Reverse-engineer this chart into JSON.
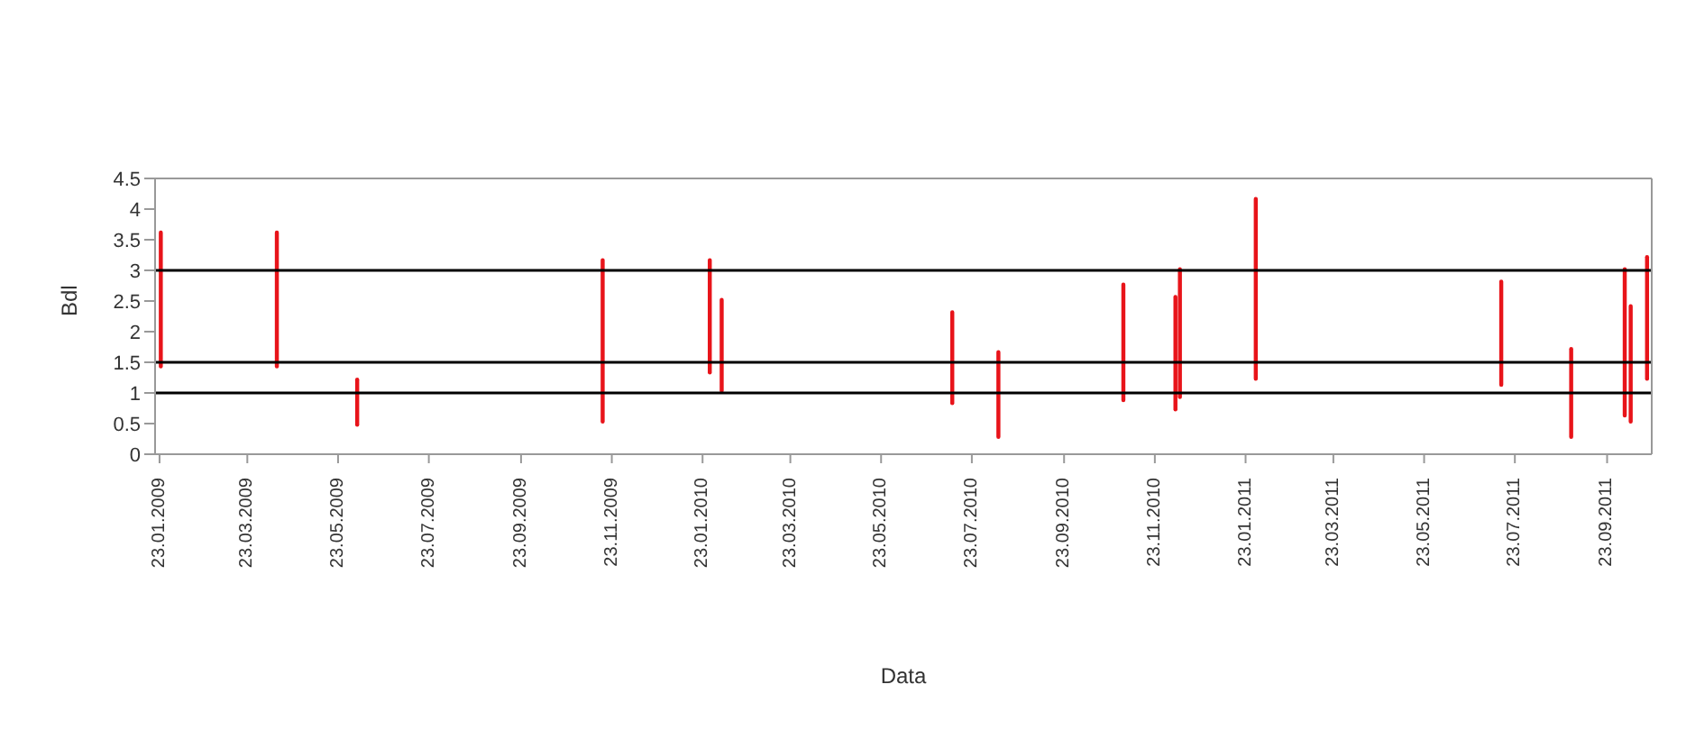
{
  "chart_data": {
    "type": "bar",
    "xlabel": "Data",
    "ylabel": "Bdl",
    "x": [
      "2009-01-24",
      "2009-04-12",
      "2009-06-05",
      "2009-11-17",
      "2010-01-28",
      "2010-02-05",
      "2010-07-10",
      "2010-08-10",
      "2010-11-02",
      "2010-12-07",
      "2010-12-10",
      "2011-01-30",
      "2011-07-14",
      "2011-08-30",
      "2011-10-05",
      "2011-10-09",
      "2011-10-20"
    ],
    "series": [
      {
        "color": "#e8141a",
        "base": [
          1.4,
          1.4,
          0.45,
          0.5,
          1.3,
          1.0,
          0.8,
          0.25,
          0.85,
          0.7,
          0.9,
          1.2,
          1.1,
          0.25,
          0.6,
          0.5,
          1.2
        ],
        "values": [
          2.25,
          2.25,
          0.8,
          2.7,
          1.9,
          1.55,
          1.55,
          1.45,
          1.95,
          1.9,
          2.15,
          3.0,
          1.75,
          1.5,
          2.45,
          1.95,
          2.05
        ]
      }
    ],
    "xlim": [
      "2009-01-20",
      "2011-10-23"
    ],
    "xticks": [
      {
        "value": "2009-01-23",
        "label": "23.01.2009"
      },
      {
        "value": "2009-03-23",
        "label": "23.03.2009"
      },
      {
        "value": "2009-05-23",
        "label": "23.05.2009"
      },
      {
        "value": "2009-07-23",
        "label": "23.07.2009"
      },
      {
        "value": "2009-09-23",
        "label": "23.09.2009"
      },
      {
        "value": "2009-11-23",
        "label": "23.11.2009"
      },
      {
        "value": "2010-01-23",
        "label": "23.01.2010"
      },
      {
        "value": "2010-03-23",
        "label": "23.03.2010"
      },
      {
        "value": "2010-05-23",
        "label": "23.05.2010"
      },
      {
        "value": "2010-07-23",
        "label": "23.07.2010"
      },
      {
        "value": "2010-09-23",
        "label": "23.09.2010"
      },
      {
        "value": "2010-11-23",
        "label": "23.11.2010"
      },
      {
        "value": "2011-01-23",
        "label": "23.01.2011"
      },
      {
        "value": "2011-03-23",
        "label": "23.03.2011"
      },
      {
        "value": "2011-05-23",
        "label": "23.05.2011"
      },
      {
        "value": "2011-07-23",
        "label": "23.07.2011"
      },
      {
        "value": "2011-09-23",
        "label": "23.09.2011"
      }
    ],
    "ylim": [
      0,
      4.5
    ],
    "yticks": [
      0,
      0.5,
      1,
      1.5,
      2,
      2.5,
      3,
      3.5,
      4,
      4.5
    ],
    "ref_lines": [
      {
        "axis": "y",
        "value": 3,
        "color": "#000000"
      },
      {
        "axis": "y",
        "value": 1.5,
        "color": "#000000"
      },
      {
        "axis": "y",
        "value": 1,
        "color": "#000000"
      }
    ],
    "grid": false,
    "legend": false
  }
}
